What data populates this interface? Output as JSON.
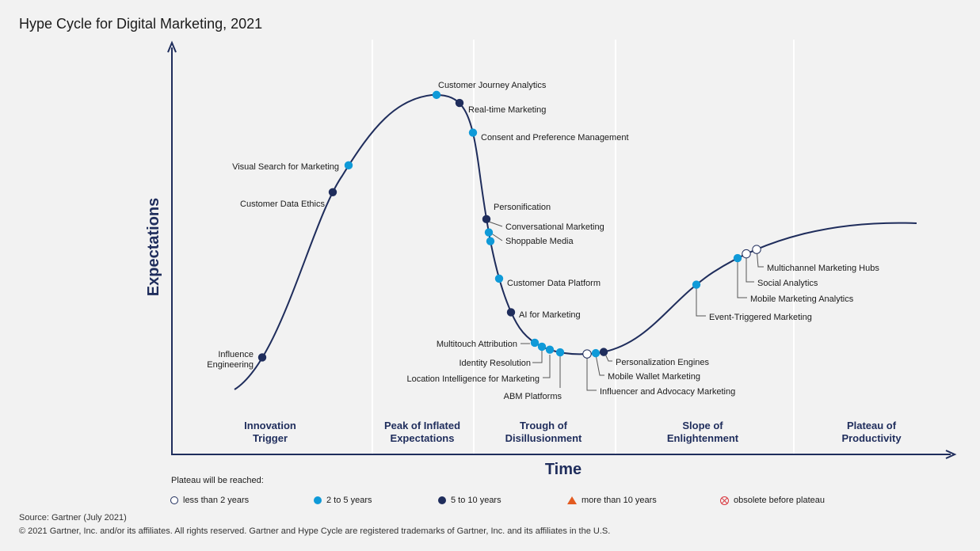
{
  "title": "Hype Cycle for Digital Marketing, 2021",
  "colors": {
    "curve": "#1f2d5c",
    "less_than_2": "#ffffff",
    "two_to_five": "#0f9ad8",
    "five_to_ten": "#1f2d5c",
    "more_than_10": "#e35b20",
    "obsolete": "#d9363e",
    "phase_divider": "#ffffff",
    "axis": "#1f2d5c"
  },
  "chart_data": {
    "type": "scatter",
    "title": "Hype Cycle for Digital Marketing, 2021",
    "xlabel": "Time",
    "ylabel": "Expectations",
    "phases": [
      {
        "line1": "Innovation",
        "line2": "Trigger"
      },
      {
        "line1": "Peak of Inflated",
        "line2": "Expectations"
      },
      {
        "line1": "Trough of",
        "line2": "Disillusionment"
      },
      {
        "line1": "Slope of",
        "line2": "Enlightenment"
      },
      {
        "line1": "Plateau of",
        "line2": "Productivity"
      }
    ],
    "technologies": [
      {
        "name": "Influence Engineering",
        "label_lines": [
          "Influence",
          "Engineering"
        ],
        "phase": "Innovation Trigger",
        "plateau": "5 to 10 years"
      },
      {
        "name": "Customer Data Ethics",
        "phase": "Innovation Trigger",
        "plateau": "5 to 10 years"
      },
      {
        "name": "Visual Search for Marketing",
        "phase": "Innovation Trigger",
        "plateau": "2 to 5 years"
      },
      {
        "name": "Customer Journey Analytics",
        "phase": "Peak of Inflated Expectations",
        "plateau": "2 to 5 years"
      },
      {
        "name": "Real-time Marketing",
        "phase": "Peak of Inflated Expectations",
        "plateau": "5 to 10 years"
      },
      {
        "name": "Consent and Preference Management",
        "phase": "Peak of Inflated Expectations",
        "plateau": "2 to 5 years"
      },
      {
        "name": "Personification",
        "phase": "Trough of Disillusionment",
        "plateau": "5 to 10 years"
      },
      {
        "name": "Conversational Marketing",
        "phase": "Trough of Disillusionment",
        "plateau": "2 to 5 years"
      },
      {
        "name": "Shoppable Media",
        "phase": "Trough of Disillusionment",
        "plateau": "2 to 5 years"
      },
      {
        "name": "Customer Data Platform",
        "phase": "Trough of Disillusionment",
        "plateau": "2 to 5 years"
      },
      {
        "name": "AI for Marketing",
        "phase": "Trough of Disillusionment",
        "plateau": "5 to 10 years"
      },
      {
        "name": "Multitouch Attribution",
        "phase": "Trough of Disillusionment",
        "plateau": "2 to 5 years"
      },
      {
        "name": "Identity Resolution",
        "phase": "Trough of Disillusionment",
        "plateau": "2 to 5 years"
      },
      {
        "name": "Location Intelligence for Marketing",
        "phase": "Trough of Disillusionment",
        "plateau": "2 to 5 years"
      },
      {
        "name": "ABM Platforms",
        "phase": "Trough of Disillusionment",
        "plateau": "2 to 5 years"
      },
      {
        "name": "Influencer and Advocacy Marketing",
        "phase": "Trough of Disillusionment",
        "plateau": "less than 2 years"
      },
      {
        "name": "Mobile Wallet Marketing",
        "phase": "Trough of Disillusionment",
        "plateau": "2 to 5 years"
      },
      {
        "name": "Personalization Engines",
        "phase": "Trough of Disillusionment",
        "plateau": "5 to 10 years"
      },
      {
        "name": "Event-Triggered Marketing",
        "phase": "Slope of Enlightenment",
        "plateau": "2 to 5 years"
      },
      {
        "name": "Mobile Marketing Analytics",
        "phase": "Slope of Enlightenment",
        "plateau": "2 to 5 years"
      },
      {
        "name": "Social Analytics",
        "phase": "Slope of Enlightenment",
        "plateau": "less than 2 years"
      },
      {
        "name": "Multichannel Marketing Hubs",
        "phase": "Slope of Enlightenment",
        "plateau": "less than 2 years"
      }
    ]
  },
  "legend": {
    "title": "Plateau will be reached:",
    "items": [
      {
        "label": "less than 2 years",
        "marker": "hollow-circle"
      },
      {
        "label": "2 to 5 years",
        "marker": "light-blue-dot"
      },
      {
        "label": "5 to 10 years",
        "marker": "dark-blue-dot"
      },
      {
        "label": "more than 10 years",
        "marker": "orange-triangle"
      },
      {
        "label": "obsolete before plateau",
        "marker": "crossed-circle"
      }
    ]
  },
  "source": "Source: Gartner (July 2021)",
  "copyright": "© 2021 Gartner, Inc. and/or its affiliates. All rights reserved. Gartner and Hype Cycle are registered trademarks of Gartner, Inc. and its affiliates in the U.S."
}
